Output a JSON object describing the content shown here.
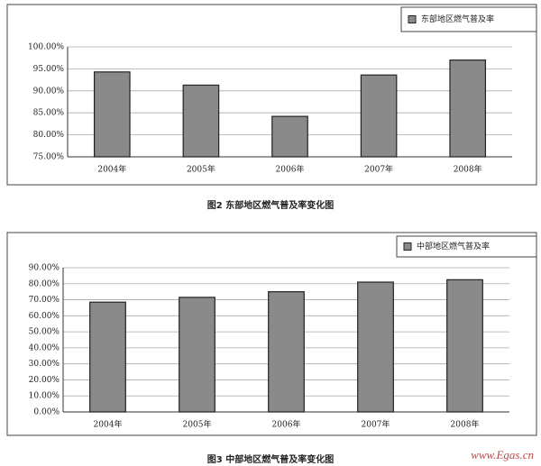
{
  "chart_data": [
    {
      "type": "bar",
      "caption": "图2  东部地区燃气普及率变化图",
      "categories": [
        "2004年",
        "2005年",
        "2006年",
        "2007年",
        "2008年"
      ],
      "series": [
        {
          "name": "东部地区燃气普及率",
          "color": "#8a8a8a",
          "values": [
            94.3,
            91.3,
            84.2,
            93.6,
            97.0
          ]
        }
      ],
      "ylim": [
        75,
        100
      ],
      "yticks": [
        {
          "value": 75,
          "label": "75.00%"
        },
        {
          "value": 80,
          "label": "80.00%"
        },
        {
          "value": 85,
          "label": "85.00%"
        },
        {
          "value": 90,
          "label": "90.00%"
        },
        {
          "value": 95,
          "label": "95.00%"
        },
        {
          "value": 100,
          "label": "100.00%"
        }
      ],
      "grid": true
    },
    {
      "type": "bar",
      "caption": "图3  中部地区燃气普及率变化图",
      "categories": [
        "2004年",
        "2005年",
        "2006年",
        "2007年",
        "2008年"
      ],
      "series": [
        {
          "name": "中部地区燃气普及率",
          "color": "#8a8a8a",
          "values": [
            68.5,
            71.5,
            75.0,
            81.0,
            82.5
          ]
        }
      ],
      "ylim": [
        0,
        90
      ],
      "yticks": [
        {
          "value": 0,
          "label": "0.00%"
        },
        {
          "value": 10,
          "label": "10.00%"
        },
        {
          "value": 20,
          "label": "20.00%"
        },
        {
          "value": 30,
          "label": "30.00%"
        },
        {
          "value": 40,
          "label": "40.00%"
        },
        {
          "value": 50,
          "label": "50.00%"
        },
        {
          "value": 60,
          "label": "60.00%"
        },
        {
          "value": 70,
          "label": "70.00%"
        },
        {
          "value": 80,
          "label": "80.00%"
        },
        {
          "value": 90,
          "label": "90.00%"
        }
      ],
      "grid": true
    }
  ],
  "watermark": "www.Egas.cn"
}
